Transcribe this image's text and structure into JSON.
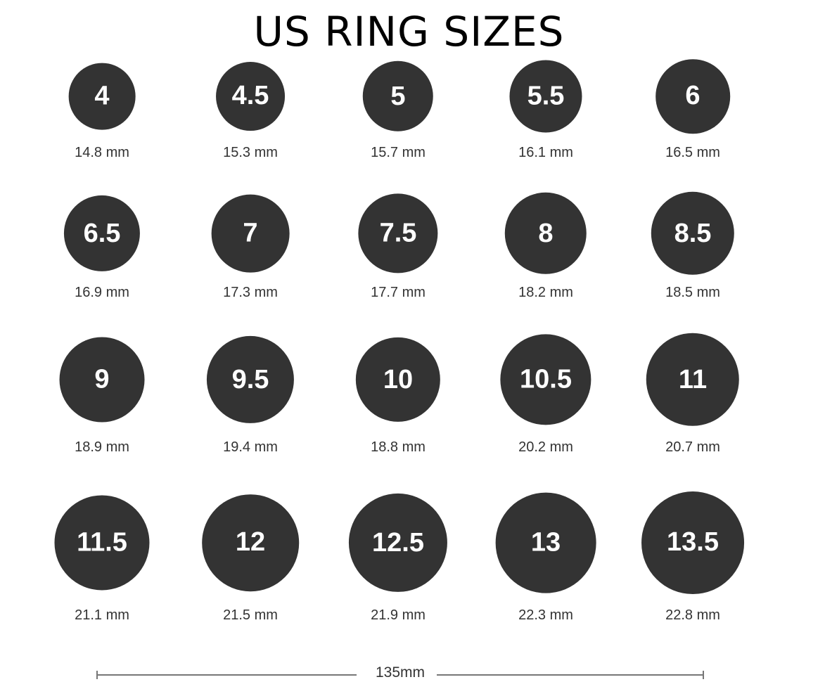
{
  "title": "US RING SIZES",
  "colors": {
    "ring": "#333333",
    "ring_text": "#ffffff",
    "label": "#333333"
  },
  "rows": [
    [
      {
        "size": "4",
        "mm": 14.8,
        "label": "14.8 mm"
      },
      {
        "size": "4.5",
        "mm": 15.3,
        "label": "15.3 mm"
      },
      {
        "size": "5",
        "mm": 15.7,
        "label": "15.7 mm"
      },
      {
        "size": "5.5",
        "mm": 16.1,
        "label": "16.1 mm"
      },
      {
        "size": "6",
        "mm": 16.5,
        "label": "16.5 mm"
      }
    ],
    [
      {
        "size": "6.5",
        "mm": 16.9,
        "label": "16.9 mm"
      },
      {
        "size": "7",
        "mm": 17.3,
        "label": "17.3 mm"
      },
      {
        "size": "7.5",
        "mm": 17.7,
        "label": "17.7 mm"
      },
      {
        "size": "8",
        "mm": 18.2,
        "label": "18.2 mm"
      },
      {
        "size": "8.5",
        "mm": 18.5,
        "label": "18.5 mm"
      }
    ],
    [
      {
        "size": "9",
        "mm": 18.9,
        "label": "18.9 mm"
      },
      {
        "size": "9.5",
        "mm": 19.4,
        "label": "19.4 mm"
      },
      {
        "size": "10",
        "mm": 18.8,
        "label": "18.8 mm"
      },
      {
        "size": "10.5",
        "mm": 20.2,
        "label": "20.2 mm"
      },
      {
        "size": "11",
        "mm": 20.7,
        "label": "20.7 mm"
      }
    ],
    [
      {
        "size": "11.5",
        "mm": 21.1,
        "label": "21.1 mm"
      },
      {
        "size": "12",
        "mm": 21.5,
        "label": "21.5 mm"
      },
      {
        "size": "12.5",
        "mm": 21.9,
        "label": "21.9 mm"
      },
      {
        "size": "13",
        "mm": 22.3,
        "label": "22.3 mm"
      },
      {
        "size": "13.5",
        "mm": 22.8,
        "label": "22.8 mm"
      }
    ]
  ],
  "scale": {
    "label": "135mm"
  }
}
